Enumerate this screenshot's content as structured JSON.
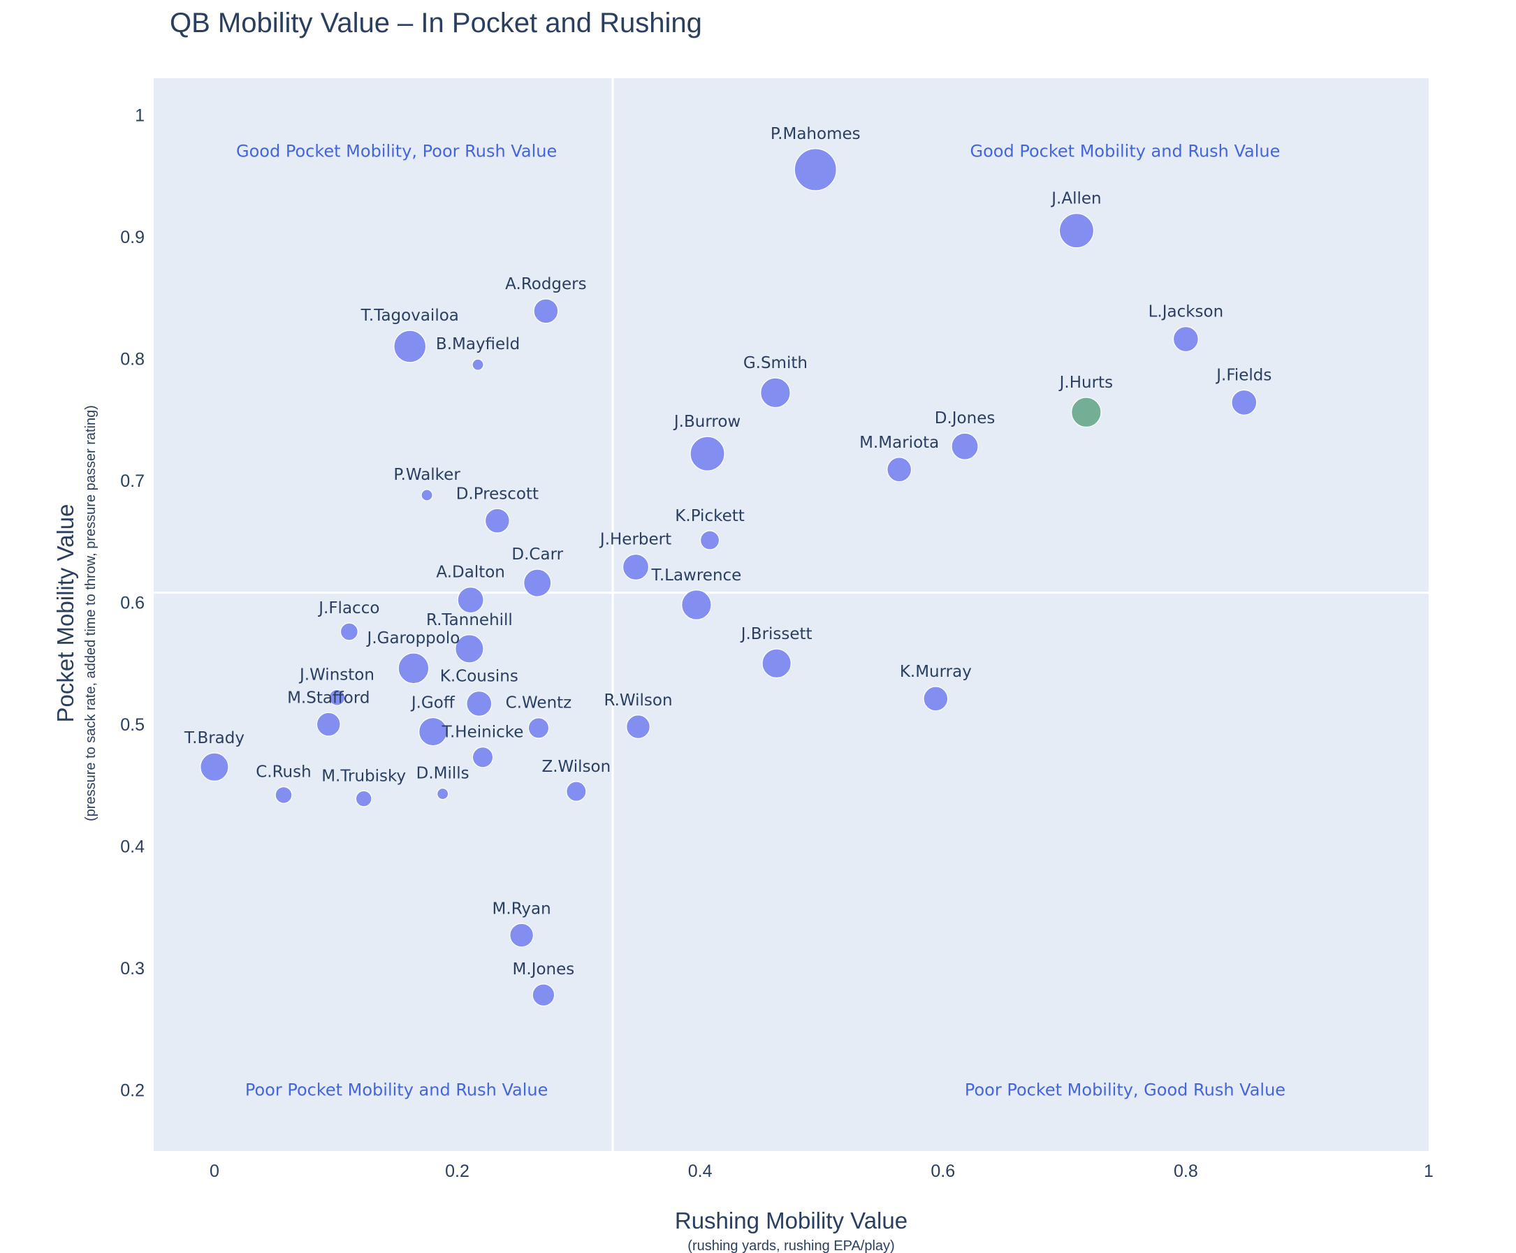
{
  "chart_data": {
    "type": "scatter",
    "title": "QB Mobility Value – In Pocket and Rushing",
    "xlabel": "Rushing Mobility Value",
    "xlabel_sub": "(rushing yards, rushing EPA/play)",
    "ylabel": "Pocket Mobility Value",
    "ylabel_sub": "(pressure to sack rate, added time to throw, pressure passer rating)",
    "xlim": [
      -0.05,
      1.0
    ],
    "ylim": [
      0.15,
      1.03
    ],
    "x_ticks": [
      0,
      0.2,
      0.4,
      0.6,
      0.8,
      1
    ],
    "x_tick_labels": [
      "0",
      "0.2",
      "0.4",
      "0.6",
      "0.8",
      "1"
    ],
    "y_ticks": [
      0.2,
      0.3,
      0.4,
      0.5,
      0.6,
      0.7,
      0.8,
      0.9,
      1
    ],
    "y_tick_labels": [
      "0.2",
      "0.3",
      "0.4",
      "0.5",
      "0.6",
      "0.7",
      "0.8",
      "0.9",
      "1"
    ],
    "grid": false,
    "divider_x": 0.328,
    "divider_y": 0.608,
    "colors": {
      "background": "#e5ecf6",
      "point": "#7b86f0",
      "highlight": "#6aa98c",
      "quadrant_text": "#4466dd",
      "text": "#2a3f5f",
      "divider": "#ffffff"
    },
    "quadrants": [
      {
        "label": "Good Pocket Mobility, Poor Rush Value",
        "x": 0.15,
        "y": 0.97
      },
      {
        "label": "Good Pocket Mobility and Rush Value",
        "x": 0.75,
        "y": 0.97
      },
      {
        "label": "Poor Pocket Mobility and Rush Value",
        "x": 0.15,
        "y": 0.2
      },
      {
        "label": "Poor Pocket Mobility, Good Rush Value",
        "x": 0.75,
        "y": 0.2
      }
    ],
    "points": [
      {
        "name": "P.Mahomes",
        "x": 0.495,
        "y": 0.955,
        "size": 5.0
      },
      {
        "name": "J.Allen",
        "x": 0.71,
        "y": 0.905,
        "size": 4.0
      },
      {
        "name": "L.Jackson",
        "x": 0.8,
        "y": 0.816,
        "size": 2.8
      },
      {
        "name": "J.Fields",
        "x": 0.848,
        "y": 0.764,
        "size": 2.8
      },
      {
        "name": "J.Hurts",
        "x": 0.718,
        "y": 0.756,
        "size": 3.4,
        "highlight": true
      },
      {
        "name": "D.Jones",
        "x": 0.618,
        "y": 0.728,
        "size": 3.0
      },
      {
        "name": "M.Mariota",
        "x": 0.564,
        "y": 0.709,
        "size": 2.7
      },
      {
        "name": "G.Smith",
        "x": 0.462,
        "y": 0.772,
        "size": 3.4
      },
      {
        "name": "J.Burrow",
        "x": 0.406,
        "y": 0.722,
        "size": 4.0
      },
      {
        "name": "K.Pickett",
        "x": 0.408,
        "y": 0.651,
        "size": 2.0
      },
      {
        "name": "J.Herbert",
        "x": 0.347,
        "y": 0.629,
        "size": 2.9
      },
      {
        "name": "T.Lawrence",
        "x": 0.397,
        "y": 0.598,
        "size": 3.4
      },
      {
        "name": "J.Brissett",
        "x": 0.463,
        "y": 0.55,
        "size": 3.3
      },
      {
        "name": "K.Murray",
        "x": 0.594,
        "y": 0.521,
        "size": 2.7
      },
      {
        "name": "R.Wilson",
        "x": 0.349,
        "y": 0.498,
        "size": 2.6
      },
      {
        "name": "Z.Wilson",
        "x": 0.298,
        "y": 0.445,
        "size": 2.1
      },
      {
        "name": "A.Rodgers",
        "x": 0.273,
        "y": 0.839,
        "size": 2.7
      },
      {
        "name": "T.Tagovailoa",
        "x": 0.161,
        "y": 0.81,
        "size": 3.7
      },
      {
        "name": "B.Mayfield",
        "x": 0.217,
        "y": 0.795,
        "size": 1.0
      },
      {
        "name": "P.Walker",
        "x": 0.175,
        "y": 0.688,
        "size": 1.0
      },
      {
        "name": "D.Prescott",
        "x": 0.233,
        "y": 0.667,
        "size": 2.7
      },
      {
        "name": "D.Carr",
        "x": 0.266,
        "y": 0.616,
        "size": 3.1
      },
      {
        "name": "A.Dalton",
        "x": 0.211,
        "y": 0.602,
        "size": 2.9
      },
      {
        "name": "J.Flacco",
        "x": 0.111,
        "y": 0.576,
        "size": 1.8
      },
      {
        "name": "R.Tannehill",
        "x": 0.21,
        "y": 0.562,
        "size": 3.2
      },
      {
        "name": "J.Garoppolo",
        "x": 0.164,
        "y": 0.546,
        "size": 3.5
      },
      {
        "name": "K.Cousins",
        "x": 0.218,
        "y": 0.517,
        "size": 2.8
      },
      {
        "name": "J.Winston",
        "x": 0.101,
        "y": 0.522,
        "size": 1.6
      },
      {
        "name": "M.Stafford",
        "x": 0.094,
        "y": 0.5,
        "size": 2.6
      },
      {
        "name": "J.Goff",
        "x": 0.18,
        "y": 0.494,
        "size": 3.2
      },
      {
        "name": "C.Wentz",
        "x": 0.267,
        "y": 0.497,
        "size": 2.2
      },
      {
        "name": "T.Heinicke",
        "x": 0.221,
        "y": 0.473,
        "size": 2.2
      },
      {
        "name": "T.Brady",
        "x": 0.0,
        "y": 0.465,
        "size": 3.2
      },
      {
        "name": "C.Rush",
        "x": 0.057,
        "y": 0.442,
        "size": 1.7
      },
      {
        "name": "M.Trubisky",
        "x": 0.123,
        "y": 0.439,
        "size": 1.6
      },
      {
        "name": "D.Mills",
        "x": 0.188,
        "y": 0.443,
        "size": 1.0
      },
      {
        "name": "M.Ryan",
        "x": 0.253,
        "y": 0.327,
        "size": 2.6
      },
      {
        "name": "M.Jones",
        "x": 0.271,
        "y": 0.278,
        "size": 2.4
      }
    ]
  }
}
